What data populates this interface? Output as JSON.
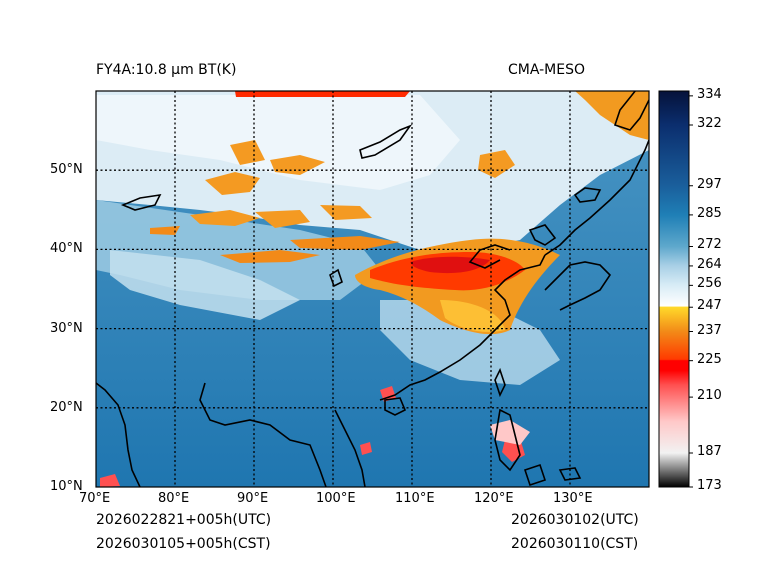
{
  "header": {
    "product_title": "FY4A:10.8 µm BT(K)",
    "model_name": "CMA-MESO"
  },
  "footer": {
    "init_time_utc": "2026022821+005h(UTC)",
    "init_time_cst": "2026030105+005h(CST)",
    "valid_time_utc": "2026030102(UTC)",
    "valid_time_cst": "2026030110(CST)"
  },
  "map": {
    "lon_range": [
      70,
      140
    ],
    "lat_range": [
      10,
      60
    ],
    "lon_ticks": [
      {
        "value": 70,
        "label": "70°E"
      },
      {
        "value": 80,
        "label": "80°E"
      },
      {
        "value": 90,
        "label": "90°E"
      },
      {
        "value": 100,
        "label": "100°E"
      },
      {
        "value": 110,
        "label": "110°E"
      },
      {
        "value": 120,
        "label": "120°E"
      },
      {
        "value": 130,
        "label": "130°E"
      }
    ],
    "lat_ticks": [
      {
        "value": 10,
        "label": "10°N"
      },
      {
        "value": 20,
        "label": "20°N"
      },
      {
        "value": 30,
        "label": "30°N"
      },
      {
        "value": 40,
        "label": "40°N"
      },
      {
        "value": 50,
        "label": "50°N"
      }
    ]
  },
  "colorbar": {
    "min": 173,
    "max": 336,
    "ticks": [
      173,
      187,
      210,
      225,
      237,
      247,
      256,
      264,
      272,
      285,
      297,
      322,
      334
    ],
    "stops": [
      {
        "value": 173,
        "color": "#000000"
      },
      {
        "value": 180,
        "color": "#7a7a7a"
      },
      {
        "value": 187,
        "color": "#f2f2f2"
      },
      {
        "value": 200,
        "color": "#ffc8c8"
      },
      {
        "value": 215,
        "color": "#ff5050"
      },
      {
        "value": 221,
        "color": "#ff0000"
      },
      {
        "value": 225,
        "color": "#ff0000"
      },
      {
        "value": 225.5,
        "color": "#ff3a00"
      },
      {
        "value": 237,
        "color": "#f28a18"
      },
      {
        "value": 247,
        "color": "#ffd92a"
      },
      {
        "value": 247.5,
        "color": "#ffffff"
      },
      {
        "value": 256,
        "color": "#d8ecf6"
      },
      {
        "value": 264,
        "color": "#a9d0e6"
      },
      {
        "value": 272,
        "color": "#5ea8cc"
      },
      {
        "value": 285,
        "color": "#1f7fb6"
      },
      {
        "value": 297,
        "color": "#1a5f9c"
      },
      {
        "value": 322,
        "color": "#0b2e6e"
      },
      {
        "value": 336,
        "color": "#05123a"
      }
    ]
  }
}
